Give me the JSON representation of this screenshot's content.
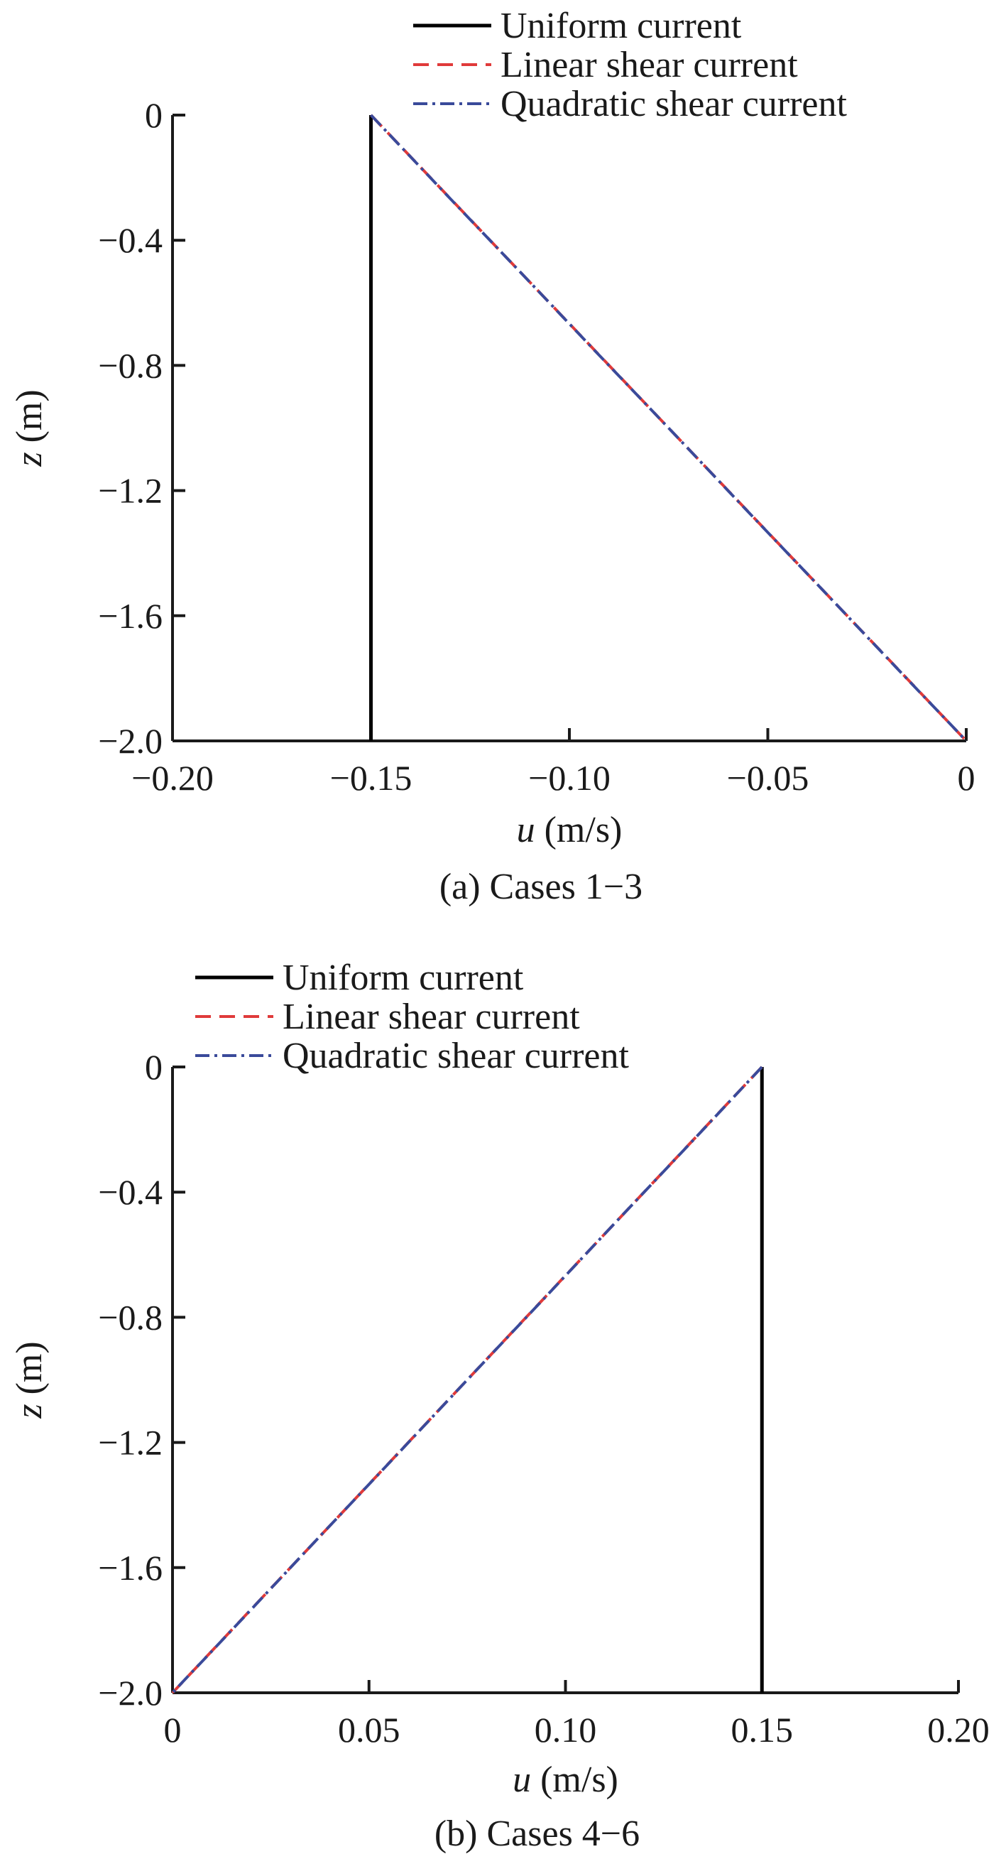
{
  "chart_data": [
    {
      "type": "line",
      "caption": "(a) Cases 1−3",
      "xlabel_var": "u",
      "xlabel_unit": " (m/s)",
      "ylabel_var": "z",
      "ylabel_unit": " (m)",
      "xlim": [
        -0.2,
        0
      ],
      "ylim": [
        -2.0,
        0
      ],
      "xticks": [
        {
          "value": -0.2,
          "label": "−0.20"
        },
        {
          "value": -0.15,
          "label": "−0.15"
        },
        {
          "value": -0.1,
          "label": "−0.10"
        },
        {
          "value": -0.05,
          "label": "−0.05"
        },
        {
          "value": 0,
          "label": "0"
        }
      ],
      "yticks": [
        {
          "value": 0,
          "label": "0"
        },
        {
          "value": -0.4,
          "label": "−0.4"
        },
        {
          "value": -0.8,
          "label": "−0.8"
        },
        {
          "value": -1.2,
          "label": "−1.2"
        },
        {
          "value": -1.6,
          "label": "−1.6"
        },
        {
          "value": -2.0,
          "label": "−2.0"
        }
      ],
      "legend_position": "top-right",
      "series": [
        {
          "name": "Uniform current",
          "color": "#000000",
          "style": "solid",
          "x": [
            -0.15,
            -0.15
          ],
          "y": [
            0,
            -2.0
          ]
        },
        {
          "name": "Linear shear current",
          "color": "#e03a3a",
          "style": "dashed",
          "x": [
            -0.15,
            0
          ],
          "y": [
            0,
            -2.0
          ]
        },
        {
          "name": "Quadratic shear current",
          "color": "#3a4a9a",
          "style": "dashdot",
          "x": [
            -0.15,
            -0.1313,
            -0.1125,
            -0.0938,
            -0.075,
            -0.0563,
            -0.0375,
            -0.0188,
            -0.0094,
            -0.0023,
            0
          ],
          "y": [
            0,
            -0.25,
            -0.5,
            -0.75,
            -1.0,
            -1.25,
            -1.5,
            -1.75,
            -1.875,
            -1.969,
            -2.0
          ]
        }
      ]
    },
    {
      "type": "line",
      "caption": "(b) Cases 4−6",
      "xlabel_var": "u",
      "xlabel_unit": " (m/s)",
      "ylabel_var": "z",
      "ylabel_unit": " (m)",
      "xlim": [
        0,
        0.2
      ],
      "ylim": [
        -2.0,
        0
      ],
      "xticks": [
        {
          "value": 0,
          "label": "0"
        },
        {
          "value": 0.05,
          "label": "0.05"
        },
        {
          "value": 0.1,
          "label": "0.10"
        },
        {
          "value": 0.15,
          "label": "0.15"
        },
        {
          "value": 0.2,
          "label": "0.20"
        }
      ],
      "yticks": [
        {
          "value": 0,
          "label": "0"
        },
        {
          "value": -0.4,
          "label": "−0.4"
        },
        {
          "value": -0.8,
          "label": "−0.8"
        },
        {
          "value": -1.2,
          "label": "−1.2"
        },
        {
          "value": -1.6,
          "label": "−1.6"
        },
        {
          "value": -2.0,
          "label": "−2.0"
        }
      ],
      "legend_position": "top-left",
      "series": [
        {
          "name": "Uniform current",
          "color": "#000000",
          "style": "solid",
          "x": [
            0.15,
            0.15
          ],
          "y": [
            0,
            -2.0
          ]
        },
        {
          "name": "Linear shear current",
          "color": "#e03a3a",
          "style": "dashed",
          "x": [
            0.15,
            0
          ],
          "y": [
            0,
            -2.0
          ]
        },
        {
          "name": "Quadratic shear current",
          "color": "#3a4a9a",
          "style": "dashdot",
          "x": [
            0.15,
            0.1313,
            0.1125,
            0.0938,
            0.075,
            0.0563,
            0.0375,
            0.0188,
            0.0094,
            0.0023,
            0
          ],
          "y": [
            0,
            -0.25,
            -0.5,
            -0.75,
            -1.0,
            -1.25,
            -1.5,
            -1.75,
            -1.875,
            -1.969,
            -2.0
          ]
        }
      ]
    }
  ]
}
